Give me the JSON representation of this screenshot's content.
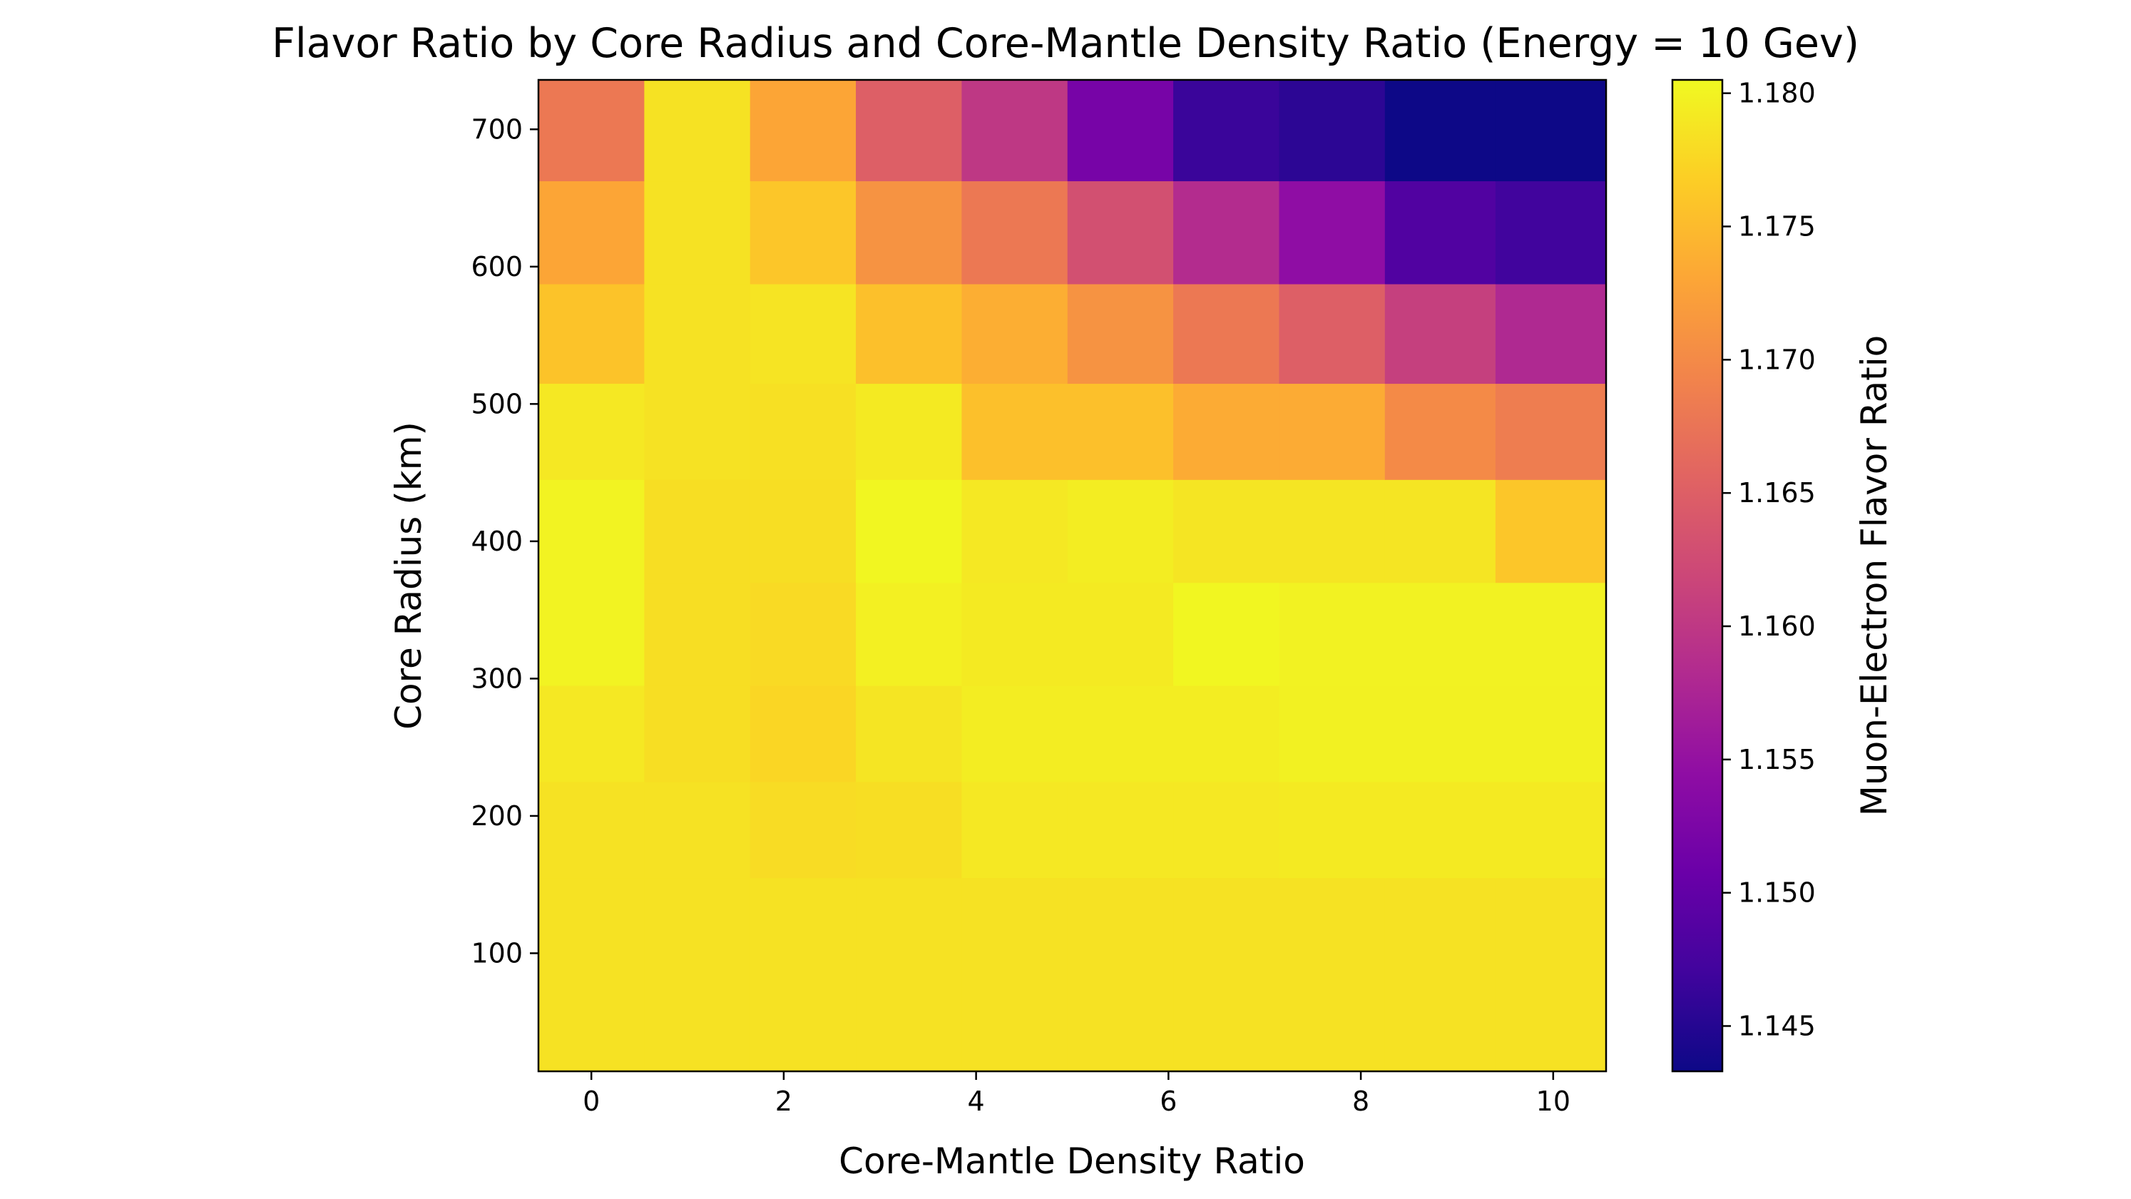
{
  "chart_data": {
    "type": "heatmap",
    "title": "Flavor Ratio by Core Radius and Core-Mantle Density Ratio (Energy = 10 Gev)",
    "xlabel": "Core-Mantle Density Ratio",
    "ylabel": "Core Radius (km)",
    "colorbar_label": "Muon-Electron Flavor Ratio",
    "colormap": "plasma",
    "x": [
      0,
      1.1,
      2.2,
      3.3,
      4.4,
      5.5,
      6.6,
      7.7,
      8.8,
      10
    ],
    "y": [
      50,
      120,
      190,
      260,
      330,
      410,
      480,
      550,
      625,
      700
    ],
    "xlim": [
      -0.55,
      10.55
    ],
    "ylim": [
      14,
      736
    ],
    "clim": [
      1.1433,
      1.1805
    ],
    "x_ticks": [
      0,
      2,
      4,
      6,
      8,
      10
    ],
    "y_ticks": [
      100,
      200,
      300,
      400,
      500,
      600,
      700
    ],
    "colorbar_ticks": [
      1.145,
      1.15,
      1.155,
      1.16,
      1.165,
      1.17,
      1.175,
      1.18
    ],
    "x_tick_labels": [
      "0",
      "2",
      "4",
      "6",
      "8",
      "10"
    ],
    "y_tick_labels": [
      "100",
      "200",
      "300",
      "400",
      "500",
      "600",
      "700"
    ],
    "colorbar_tick_labels": [
      "1.145",
      "1.150",
      "1.155",
      "1.160",
      "1.165",
      "1.170",
      "1.175",
      "1.180"
    ],
    "values": [
      [
        1.1785,
        1.1785,
        1.1785,
        1.1785,
        1.1785,
        1.1785,
        1.1785,
        1.1785,
        1.1785,
        1.1785
      ],
      [
        1.1785,
        1.1785,
        1.1785,
        1.1785,
        1.1785,
        1.1785,
        1.1785,
        1.1785,
        1.1785,
        1.1785
      ],
      [
        1.1785,
        1.1785,
        1.178,
        1.1782,
        1.179,
        1.179,
        1.179,
        1.1792,
        1.1792,
        1.1792
      ],
      [
        1.179,
        1.1782,
        1.1775,
        1.1788,
        1.1795,
        1.1795,
        1.1795,
        1.1798,
        1.1798,
        1.1798
      ],
      [
        1.18,
        1.1782,
        1.1778,
        1.1797,
        1.1792,
        1.1792,
        1.1802,
        1.1799,
        1.1799,
        1.1799
      ],
      [
        1.18,
        1.1782,
        1.1782,
        1.1802,
        1.179,
        1.1795,
        1.1788,
        1.1788,
        1.1788,
        1.176
      ],
      [
        1.179,
        1.1785,
        1.1783,
        1.1792,
        1.1755,
        1.1755,
        1.1735,
        1.1735,
        1.17,
        1.1685
      ],
      [
        1.1758,
        1.1785,
        1.1787,
        1.1755,
        1.1738,
        1.171,
        1.168,
        1.165,
        1.161,
        1.158
      ],
      [
        1.173,
        1.1785,
        1.176,
        1.171,
        1.168,
        1.163,
        1.1585,
        1.1545,
        1.1485,
        1.147
      ],
      [
        1.168,
        1.1785,
        1.173,
        1.165,
        1.16,
        1.152,
        1.1465,
        1.1455,
        1.1433,
        1.1433
      ]
    ]
  }
}
